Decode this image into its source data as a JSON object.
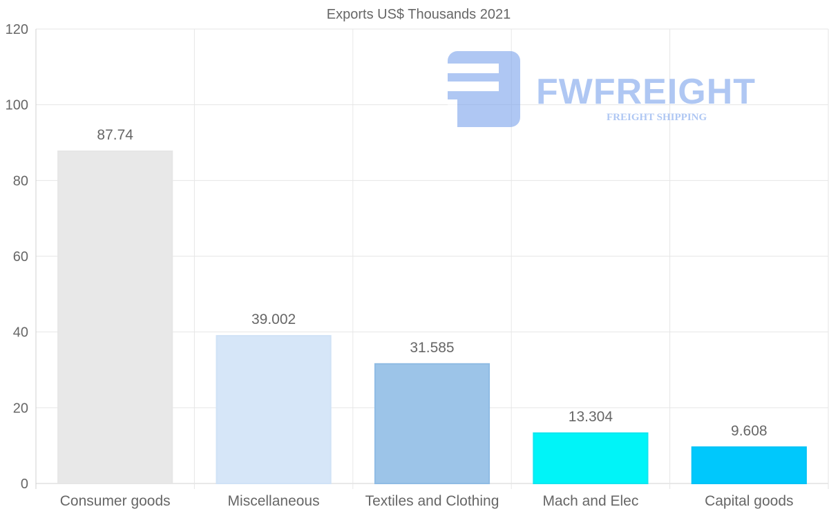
{
  "chart_data": {
    "type": "bar",
    "title": "Exports US$ Thousands 2021",
    "categories": [
      "Consumer goods",
      "Miscellaneous",
      "Textiles and Clothing",
      "Mach and Elec",
      "Capital goods"
    ],
    "values": [
      87.74,
      39.002,
      31.585,
      13.304,
      9.608
    ],
    "value_labels": [
      "87.74",
      "39.002",
      "31.585",
      "13.304",
      "9.608"
    ],
    "colors": [
      "#e8e8e8",
      "#d6e6f8",
      "#9cc4e8",
      "#00f4f8",
      "#00c8fc"
    ],
    "border_colors": [
      "#e6e6e6",
      "#d0e2f6",
      "#8fbbe4",
      "#10e6f0",
      "#00c2f6"
    ],
    "ylim": [
      0,
      120
    ],
    "yticks": [
      0,
      20,
      40,
      60,
      80,
      100,
      120
    ],
    "xlabel": "",
    "ylabel": "",
    "grid": true
  },
  "watermark": {
    "brand": "FWFREIGHT",
    "tagline": "FREIGHT SHIPPING",
    "color": "#7ba3ec"
  }
}
